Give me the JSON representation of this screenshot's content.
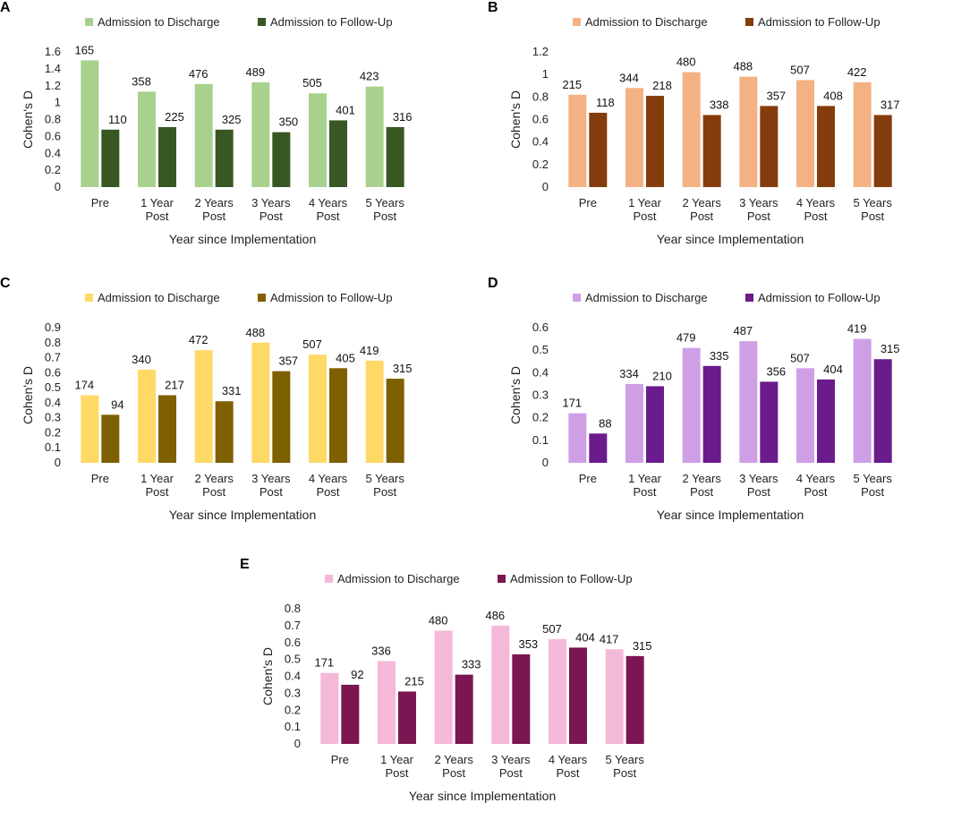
{
  "chart_data": [
    {
      "panel": "A",
      "type": "bar",
      "categories": [
        [
          "Pre"
        ],
        [
          "1 Year",
          "Post"
        ],
        [
          "2 Years",
          "Post"
        ],
        [
          "3 Years",
          "Post"
        ],
        [
          "4 Years",
          "Post"
        ],
        [
          "5 Years",
          "Post"
        ]
      ],
      "series": [
        {
          "name": "Admission to Discharge",
          "color": "#a9d18e",
          "values": [
            1.5,
            1.13,
            1.22,
            1.24,
            1.11,
            1.19
          ],
          "labels": [
            "165",
            "358",
            "476",
            "489",
            "505",
            "423"
          ]
        },
        {
          "name": "Admission to Follow-Up",
          "color": "#385723",
          "values": [
            0.68,
            0.71,
            0.68,
            0.65,
            0.79,
            0.71
          ],
          "labels": [
            "110",
            "225",
            "325",
            "350",
            "401",
            "316"
          ]
        }
      ],
      "yticks": [
        "0",
        "0.2",
        "0.4",
        "0.6",
        "0.8",
        "1",
        "1.2",
        "1.4",
        "1.6"
      ],
      "ylim": [
        0,
        1.6
      ],
      "xlabel": "Year since Implementation",
      "ylabel": "Cohen's D"
    },
    {
      "panel": "B",
      "type": "bar",
      "categories": [
        [
          "Pre"
        ],
        [
          "1 Year",
          "Post"
        ],
        [
          "2 Years",
          "Post"
        ],
        [
          "3 Years",
          "Post"
        ],
        [
          "4 Years",
          "Post"
        ],
        [
          "5 Years",
          "Post"
        ]
      ],
      "series": [
        {
          "name": "Admission to Discharge",
          "color": "#f4b183",
          "values": [
            0.82,
            0.88,
            1.02,
            0.98,
            0.95,
            0.93
          ],
          "labels": [
            "215",
            "344",
            "480",
            "488",
            "507",
            "422"
          ]
        },
        {
          "name": "Admission to Follow-Up",
          "color": "#843c0c",
          "values": [
            0.66,
            0.81,
            0.64,
            0.72,
            0.72,
            0.64
          ],
          "labels": [
            "118",
            "218",
            "338",
            "357",
            "408",
            "317"
          ]
        }
      ],
      "yticks": [
        "0",
        "0.2",
        "0.4",
        "0.6",
        "0.8",
        "1",
        "1.2"
      ],
      "ylim": [
        0,
        1.2
      ],
      "xlabel": "Year since Implementation",
      "ylabel": "Cohen's D"
    },
    {
      "panel": "C",
      "type": "bar",
      "categories": [
        [
          "Pre"
        ],
        [
          "1 Year",
          "Post"
        ],
        [
          "2 Years",
          "Post"
        ],
        [
          "3 Years",
          "Post"
        ],
        [
          "4 Years",
          "Post"
        ],
        [
          "5 Years",
          "Post"
        ]
      ],
      "series": [
        {
          "name": "Admission to Discharge",
          "color": "#ffd966",
          "values": [
            0.45,
            0.62,
            0.75,
            0.8,
            0.72,
            0.68
          ],
          "labels": [
            "174",
            "340",
            "472",
            "488",
            "507",
            "419"
          ]
        },
        {
          "name": "Admission to Follow-Up",
          "color": "#7f6000",
          "values": [
            0.32,
            0.45,
            0.41,
            0.61,
            0.63,
            0.56
          ],
          "labels": [
            "94",
            "217",
            "331",
            "357",
            "405",
            "315"
          ]
        }
      ],
      "yticks": [
        "0",
        "0.1",
        "0.2",
        "0.3",
        "0.4",
        "0.5",
        "0.6",
        "0.7",
        "0.8",
        "0.9"
      ],
      "ylim": [
        0,
        0.9
      ],
      "xlabel": "Year since Implementation",
      "ylabel": "Cohen's D"
    },
    {
      "panel": "D",
      "type": "bar",
      "categories": [
        [
          "Pre"
        ],
        [
          "1 Year",
          "Post"
        ],
        [
          "2 Years",
          "Post"
        ],
        [
          "3 Years",
          "Post"
        ],
        [
          "4 Years",
          "Post"
        ],
        [
          "5 Years",
          "Post"
        ]
      ],
      "series": [
        {
          "name": "Admission to Discharge",
          "color": "#cf9fe6",
          "values": [
            0.22,
            0.35,
            0.51,
            0.54,
            0.42,
            0.55
          ],
          "labels": [
            "171",
            "334",
            "479",
            "487",
            "507",
            "419"
          ]
        },
        {
          "name": "Admission to Follow-Up",
          "color": "#6a1b8c",
          "values": [
            0.13,
            0.34,
            0.43,
            0.36,
            0.37,
            0.46
          ],
          "labels": [
            "88",
            "210",
            "335",
            "356",
            "404",
            "315"
          ]
        }
      ],
      "yticks": [
        "0",
        "0.1",
        "0.2",
        "0.3",
        "0.4",
        "0.5",
        "0.6"
      ],
      "ylim": [
        0,
        0.6
      ],
      "xlabel": "Year since Implementation",
      "ylabel": "Cohen's D"
    },
    {
      "panel": "E",
      "type": "bar",
      "categories": [
        [
          "Pre"
        ],
        [
          "1 Year",
          "Post"
        ],
        [
          "2 Years",
          "Post"
        ],
        [
          "3 Years",
          "Post"
        ],
        [
          "4 Years",
          "Post"
        ],
        [
          "5 Years",
          "Post"
        ]
      ],
      "series": [
        {
          "name": "Admission to Discharge",
          "color": "#f4b8d8",
          "values": [
            0.42,
            0.49,
            0.67,
            0.7,
            0.62,
            0.56
          ],
          "labels": [
            "171",
            "336",
            "480",
            "486",
            "507",
            "417"
          ]
        },
        {
          "name": "Admission to Follow-Up",
          "color": "#7b1652",
          "values": [
            0.35,
            0.31,
            0.41,
            0.53,
            0.57,
            0.52
          ],
          "labels": [
            "92",
            "215",
            "333",
            "353",
            "404",
            "315"
          ]
        }
      ],
      "yticks": [
        "0",
        "0.1",
        "0.2",
        "0.3",
        "0.4",
        "0.5",
        "0.6",
        "0.7",
        "0.8"
      ],
      "ylim": [
        0,
        0.8
      ],
      "xlabel": "Year since Implementation",
      "ylabel": "Cohen's D"
    }
  ]
}
